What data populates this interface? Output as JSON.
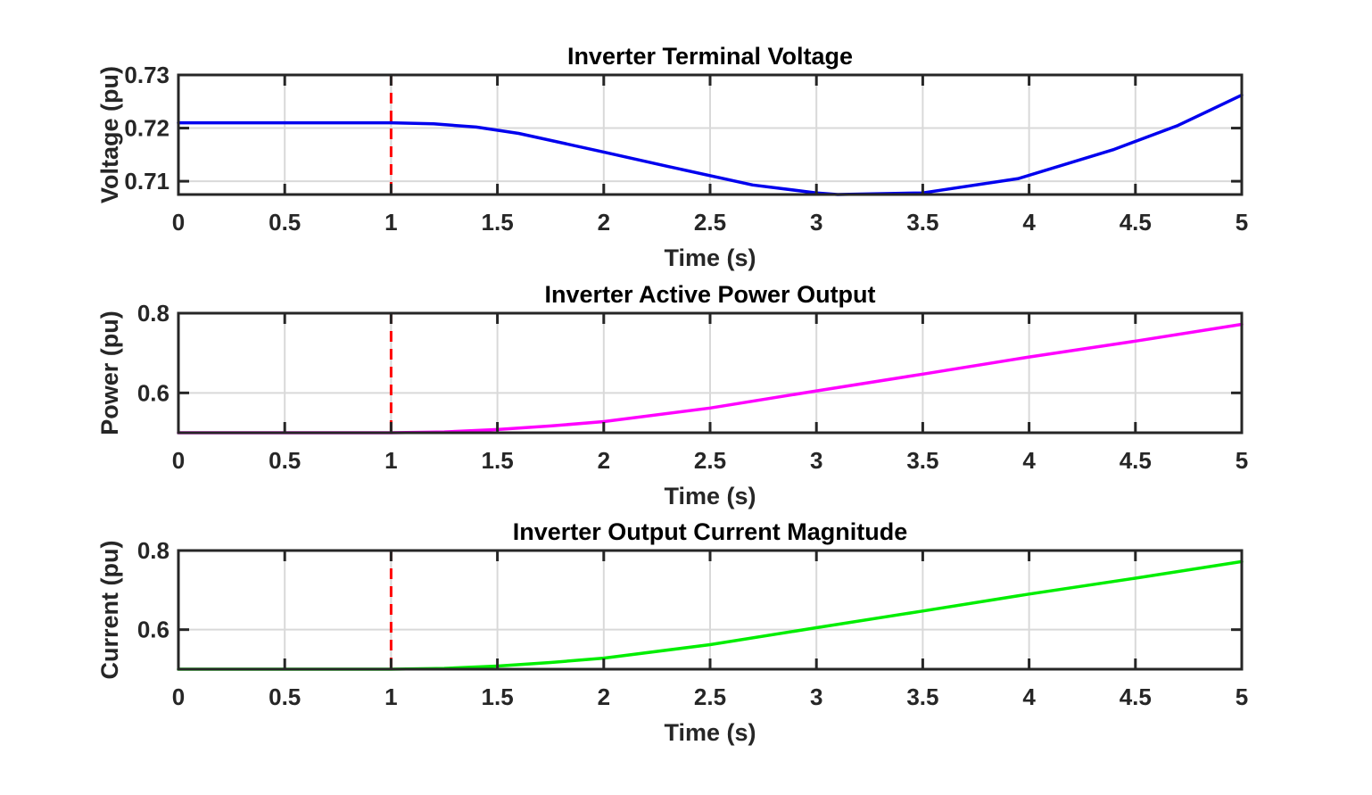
{
  "chart_data": [
    {
      "type": "line",
      "title": "Inverter Terminal Voltage",
      "xlabel": "Time (s)",
      "ylabel": "Voltage (pu)",
      "xlim": [
        0,
        5
      ],
      "ylim": [
        0.7075,
        0.73
      ],
      "xticks": [
        "0",
        "0.5",
        "1",
        "1.5",
        "2",
        "2.5",
        "3",
        "3.5",
        "4",
        "4.5",
        "5"
      ],
      "yticks": [
        "0.71",
        "0.72",
        "0.73"
      ],
      "grid": true,
      "vline": {
        "x": 1,
        "color": "#ff0000",
        "style": "dashed"
      },
      "series": [
        {
          "color": "#0000ee",
          "x": [
            0,
            0.5,
            1.0,
            1.2,
            1.4,
            1.6,
            2.0,
            2.3,
            2.7,
            3.0,
            3.1,
            3.5,
            3.95,
            4.4,
            4.7,
            5.0
          ],
          "y": [
            0.721,
            0.721,
            0.721,
            0.7208,
            0.7202,
            0.719,
            0.7155,
            0.7128,
            0.7093,
            0.7078,
            0.7075,
            0.7078,
            0.7105,
            0.716,
            0.7205,
            0.7262
          ]
        }
      ]
    },
    {
      "type": "line",
      "title": "Inverter Active Power Output",
      "xlabel": "Time (s)",
      "ylabel": "Power (pu)",
      "xlim": [
        0,
        5
      ],
      "ylim": [
        0.5,
        0.8
      ],
      "xticks": [
        "0",
        "0.5",
        "1",
        "1.5",
        "2",
        "2.5",
        "3",
        "3.5",
        "4",
        "4.5",
        "5"
      ],
      "yticks": [
        "0.6",
        "0.8"
      ],
      "grid": true,
      "vline": {
        "x": 1,
        "color": "#ff0000",
        "style": "dashed"
      },
      "series": [
        {
          "color": "#ff00ff",
          "x": [
            0,
            0.5,
            1.0,
            1.25,
            1.5,
            1.75,
            2.0,
            2.5,
            3.0,
            3.5,
            4.0,
            4.5,
            5.0
          ],
          "y": [
            0.5,
            0.5,
            0.5,
            0.502,
            0.508,
            0.517,
            0.528,
            0.562,
            0.605,
            0.647,
            0.69,
            0.73,
            0.772
          ]
        }
      ]
    },
    {
      "type": "line",
      "title": "Inverter Output Current Magnitude",
      "xlabel": "Time (s)",
      "ylabel": "Current (pu)",
      "xlim": [
        0,
        5
      ],
      "ylim": [
        0.5,
        0.8
      ],
      "xticks": [
        "0",
        "0.5",
        "1",
        "1.5",
        "2",
        "2.5",
        "3",
        "3.5",
        "4",
        "4.5",
        "5"
      ],
      "yticks": [
        "0.6",
        "0.8"
      ],
      "grid": true,
      "vline": {
        "x": 1,
        "color": "#ff0000",
        "style": "dashed"
      },
      "series": [
        {
          "color": "#00ee00",
          "x": [
            0,
            0.5,
            1.0,
            1.25,
            1.5,
            1.75,
            2.0,
            2.5,
            3.0,
            3.5,
            4.0,
            4.5,
            5.0
          ],
          "y": [
            0.5,
            0.5,
            0.5,
            0.502,
            0.508,
            0.517,
            0.528,
            0.562,
            0.605,
            0.647,
            0.69,
            0.73,
            0.772
          ]
        }
      ]
    }
  ]
}
